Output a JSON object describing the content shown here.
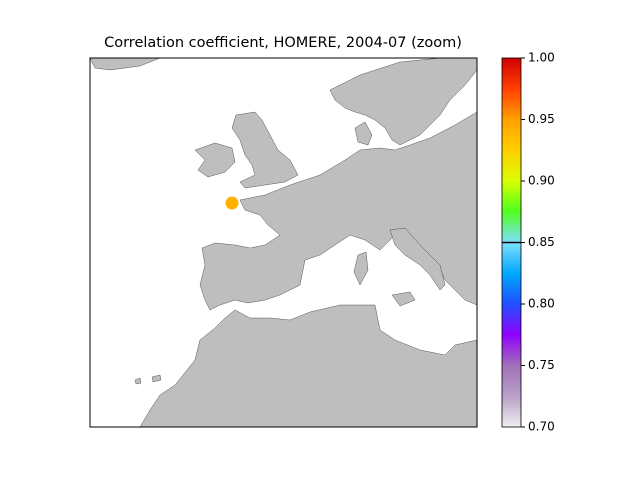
{
  "chart_data": {
    "type": "map",
    "title": "Correlation coefficient, HOMERE, 2004-07 (zoom)",
    "points": [
      {
        "value": 0.94
      }
    ],
    "colorbar": {
      "lim": [
        0.7,
        1.0
      ],
      "ticks": [
        {
          "value": 0.7,
          "label": "0.70"
        },
        {
          "value": 0.75,
          "label": "0.75"
        },
        {
          "value": 0.8,
          "label": "0.80"
        },
        {
          "value": 0.85,
          "label": "0.85"
        },
        {
          "value": 0.9,
          "label": "0.90"
        },
        {
          "value": 0.95,
          "label": "0.95"
        },
        {
          "value": 1.0,
          "label": "1.00"
        }
      ],
      "threshold": 0.85,
      "colormap": [
        "#f0f0f0",
        "#b8a0c8",
        "#a070b8",
        "#9000ff",
        "#2050ff",
        "#00a8ff",
        "#80e0ff",
        "#50ff20",
        "#d8ff00",
        "#ffd000",
        "#ffa000",
        "#ff4000",
        "#d00000"
      ]
    }
  }
}
